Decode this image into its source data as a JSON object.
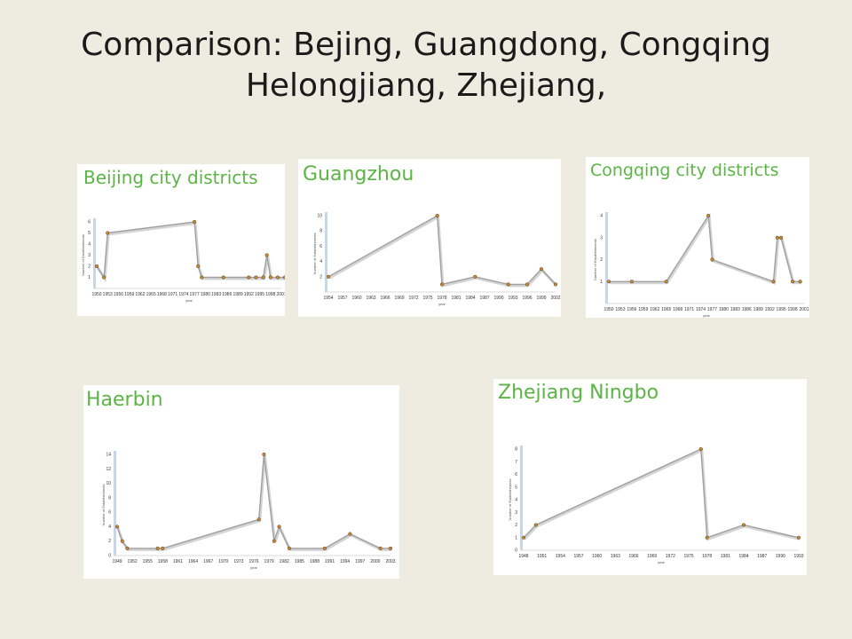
{
  "title": {
    "line1": "Comparison: Bejing, Guangdong, Congqing",
    "line2": "Helongjiang, Zhejiang,"
  },
  "colors": {
    "accent": "#5bb544",
    "line": "#a0a0a0",
    "marker": "#d98a1f"
  },
  "chart_data": [
    {
      "type": "line",
      "title": "Beijing city districts",
      "xlabel": "year",
      "ylabel": "Number of Establishments",
      "x_ticks": [
        "1950",
        "1953",
        "1956",
        "1959",
        "1962",
        "1965",
        "1968",
        "1971",
        "1974",
        "1977",
        "1980",
        "1983",
        "1986",
        "1989",
        "1992",
        "1995",
        "1998",
        "2001"
      ],
      "y_ticks": [
        "1",
        "2",
        "3",
        "4",
        "5",
        "6"
      ],
      "ylim": [
        0,
        6
      ],
      "x": [
        1950,
        1952,
        1953,
        1977,
        1978,
        1979,
        1985,
        1992,
        1994,
        1996,
        1997,
        1998,
        2000,
        2002
      ],
      "y": [
        2,
        1,
        5,
        6,
        2,
        1,
        1,
        1,
        1,
        1,
        3,
        1,
        1,
        1
      ]
    },
    {
      "type": "line",
      "title": "Guangzhou",
      "xlabel": "year",
      "ylabel": "Number of Establishments",
      "x_ticks": [
        "1954",
        "1957",
        "1960",
        "1963",
        "1966",
        "1969",
        "1972",
        "1975",
        "1978",
        "1981",
        "1984",
        "1987",
        "1990",
        "1993",
        "1996",
        "1999",
        "2002"
      ],
      "y_ticks": [
        "2",
        "4",
        "6",
        "8",
        "10"
      ],
      "ylim": [
        0,
        10
      ],
      "x": [
        1954,
        1977,
        1978,
        1985,
        1992,
        1996,
        1999,
        2002
      ],
      "y": [
        2,
        10,
        1,
        2,
        1,
        1,
        3,
        1
      ]
    },
    {
      "type": "line",
      "title": "Congqing city districts",
      "xlabel": "year",
      "ylabel": "Number of Establishments",
      "x_ticks": [
        "1950",
        "1953",
        "1956",
        "1959",
        "1962",
        "1965",
        "1968",
        "1971",
        "1974",
        "1977",
        "1980",
        "1983",
        "1986",
        "1989",
        "1992",
        "1995",
        "1998",
        "2001"
      ],
      "y_ticks": [
        "1",
        "2",
        "3",
        "4"
      ],
      "ylim": [
        0,
        4
      ],
      "x": [
        1950,
        1956,
        1965,
        1976,
        1977,
        1993,
        1994,
        1995,
        1998,
        2000
      ],
      "y": [
        1,
        1,
        1,
        4,
        2,
        1,
        3,
        3,
        1,
        1
      ]
    },
    {
      "type": "line",
      "title": "Haerbin",
      "xlabel": "year",
      "ylabel": "Number of Establishments",
      "x_ticks": [
        "1949",
        "1952",
        "1955",
        "1958",
        "1961",
        "1964",
        "1967",
        "1970",
        "1973",
        "1976",
        "1979",
        "1982",
        "1985",
        "1988",
        "1991",
        "1994",
        "1997",
        "2000",
        "2003"
      ],
      "y_ticks": [
        "0",
        "2",
        "4",
        "6",
        "8",
        "10",
        "12",
        "14"
      ],
      "ylim": [
        0,
        14
      ],
      "x": [
        1949,
        1950,
        1951,
        1957,
        1958,
        1977,
        1978,
        1980,
        1981,
        1983,
        1990,
        1995,
        2001,
        2003
      ],
      "y": [
        4,
        2,
        1,
        1,
        1,
        5,
        14,
        2,
        4,
        1,
        1,
        3,
        1,
        1
      ]
    },
    {
      "type": "line",
      "title": "Zhejiang Ningbo",
      "xlabel": "year",
      "ylabel": "Number of Establishments",
      "x_ticks": [
        "1948",
        "1951",
        "1954",
        "1957",
        "1960",
        "1963",
        "1966",
        "1969",
        "1972",
        "1975",
        "1978",
        "1981",
        "1984",
        "1987",
        "1990",
        "1993"
      ],
      "y_ticks": [
        "0",
        "1",
        "2",
        "3",
        "4",
        "5",
        "6",
        "7",
        "8"
      ],
      "ylim": [
        0,
        8
      ],
      "x": [
        1948,
        1950,
        1977,
        1978,
        1984,
        1993
      ],
      "y": [
        1,
        2,
        8,
        1,
        2,
        1
      ]
    }
  ]
}
